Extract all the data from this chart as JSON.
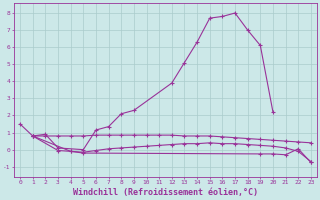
{
  "bg_color": "#cce8e8",
  "line_color": "#993399",
  "grid_color": "#aacccc",
  "xlabel": "Windchill (Refroidissement éolien,°C)",
  "xlim": [
    -0.5,
    23.5
  ],
  "ylim": [
    -1.6,
    8.6
  ],
  "xticks": [
    0,
    1,
    2,
    3,
    4,
    5,
    6,
    7,
    8,
    9,
    10,
    11,
    12,
    13,
    14,
    15,
    16,
    17,
    18,
    19,
    20,
    21,
    22,
    23
  ],
  "yticks": [
    -1,
    0,
    1,
    2,
    3,
    4,
    5,
    6,
    7,
    8
  ],
  "tick_fontsize": 4.5,
  "xlabel_fontsize": 6.0,
  "line1_x": [
    0,
    1,
    2,
    3,
    5,
    6,
    7,
    8,
    9,
    12,
    13,
    14,
    15,
    16,
    17,
    18,
    19,
    20
  ],
  "line1_y": [
    1.5,
    0.8,
    0.9,
    0.1,
    0.0,
    1.15,
    1.35,
    2.1,
    2.3,
    3.9,
    5.1,
    6.3,
    7.7,
    7.8,
    8.0,
    7.0,
    6.1,
    2.2
  ],
  "line2_x": [
    1,
    2,
    3,
    4,
    5,
    6,
    7,
    8,
    9,
    10,
    11,
    12,
    13,
    14,
    15,
    16,
    17,
    18,
    19,
    20,
    21,
    22,
    23
  ],
  "line2_y": [
    0.8,
    0.8,
    0.8,
    0.8,
    0.8,
    0.85,
    0.85,
    0.85,
    0.85,
    0.85,
    0.85,
    0.85,
    0.8,
    0.8,
    0.8,
    0.75,
    0.7,
    0.65,
    0.6,
    0.55,
    0.5,
    0.45,
    0.4
  ],
  "line3_x": [
    1,
    3,
    4,
    5,
    6,
    7,
    8,
    9,
    10,
    11,
    12,
    13,
    14,
    15,
    16,
    17,
    18,
    19,
    20,
    21,
    22,
    23
  ],
  "line3_y": [
    0.8,
    -0.05,
    -0.1,
    -0.15,
    -0.05,
    0.05,
    0.1,
    0.15,
    0.2,
    0.25,
    0.3,
    0.35,
    0.35,
    0.4,
    0.35,
    0.35,
    0.3,
    0.25,
    0.2,
    0.1,
    -0.1,
    -0.7
  ],
  "line4_x": [
    1,
    4,
    5,
    19,
    20,
    21,
    22,
    23
  ],
  "line4_y": [
    0.8,
    -0.1,
    -0.2,
    -0.25,
    -0.25,
    -0.3,
    0.05,
    -0.75
  ]
}
